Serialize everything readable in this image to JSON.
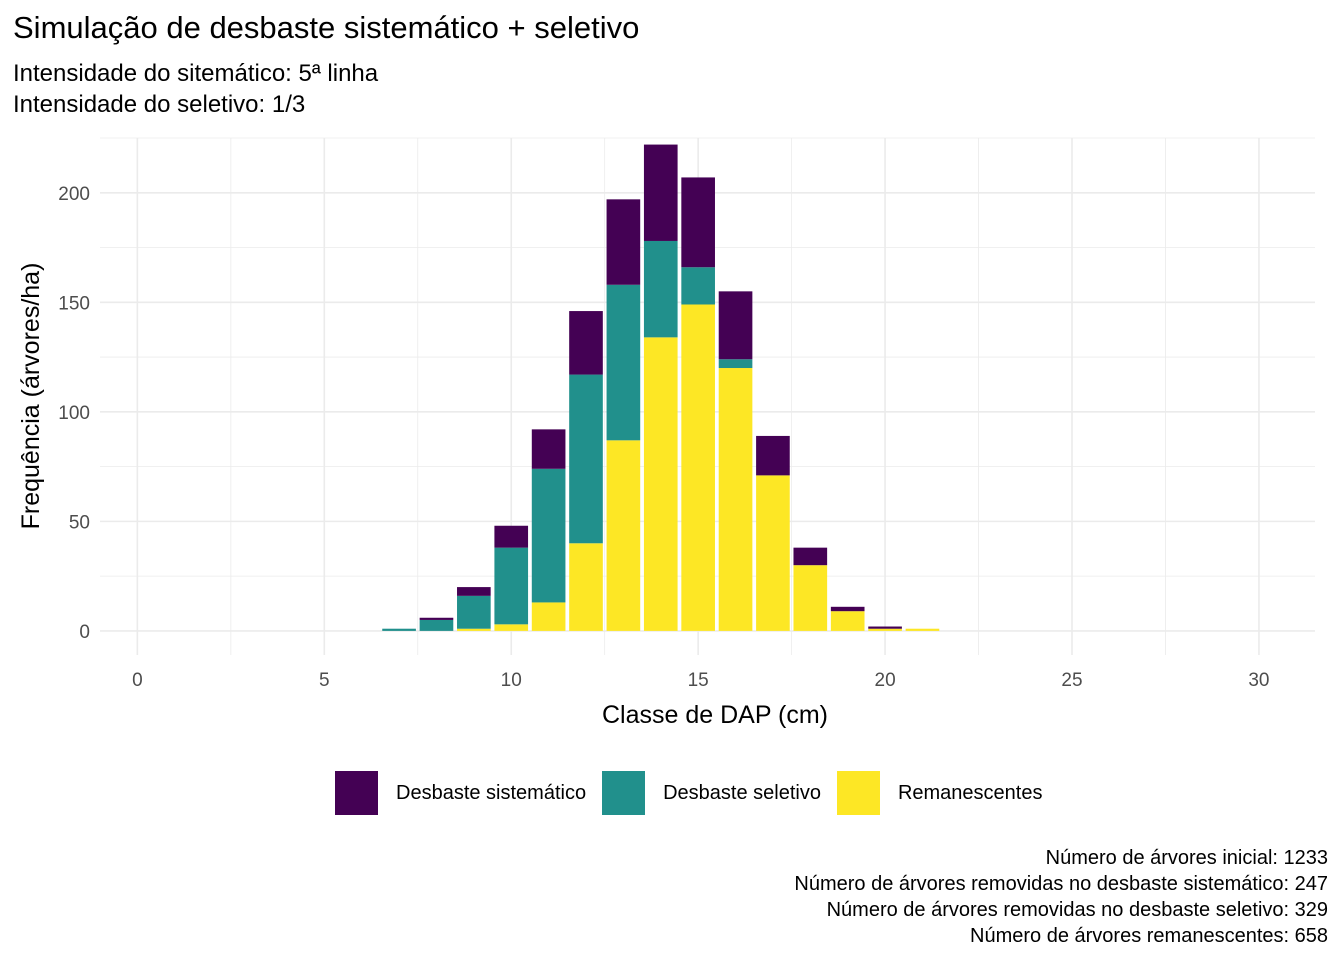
{
  "chart_data": {
    "type": "bar",
    "stacked": true,
    "title": "Simulação de desbaste sistemático + seletivo",
    "subtitle": [
      "Intensidade do sitemático: 5ª linha",
      "Intensidade do seletivo: 1/3"
    ],
    "xlabel": "Classe de DAP (cm)",
    "ylabel": "Frequência (árvores/ha)",
    "xlim": [
      -1,
      31.5
    ],
    "ylim": [
      -11,
      225
    ],
    "xticks": [
      0,
      5,
      10,
      15,
      20,
      25,
      30
    ],
    "yticks": [
      0,
      50,
      100,
      150,
      200
    ],
    "grid": true,
    "legend_position": "bottom",
    "x": [
      7,
      8,
      9,
      10,
      11,
      12,
      13,
      14,
      15,
      16,
      17,
      18,
      19,
      20,
      21
    ],
    "series": [
      {
        "name": "Remanescentes",
        "color": "#FDE725",
        "values": [
          0,
          0,
          1,
          3,
          13,
          40,
          87,
          134,
          149,
          120,
          71,
          30,
          9,
          1,
          1
        ]
      },
      {
        "name": "Desbaste seletivo",
        "color": "#21908C",
        "values": [
          1,
          5,
          15,
          35,
          61,
          77,
          71,
          44,
          17,
          4,
          0,
          0,
          0,
          0,
          0
        ]
      },
      {
        "name": "Desbaste sistemático",
        "color": "#440154",
        "values": [
          0,
          1,
          4,
          10,
          18,
          29,
          39,
          44,
          41,
          31,
          18,
          8,
          2,
          1,
          0
        ]
      }
    ],
    "legend_order": [
      "Desbaste sistemático",
      "Desbaste seletivo",
      "Remanescentes"
    ],
    "caption": [
      "Número de árvores inicial: 1233",
      "Número de árvores removidas no desbaste sistemático: 247",
      "Número de árvores removidas no desbaste seletivo: 329",
      "Número de árvores remanescentes: 658"
    ]
  }
}
